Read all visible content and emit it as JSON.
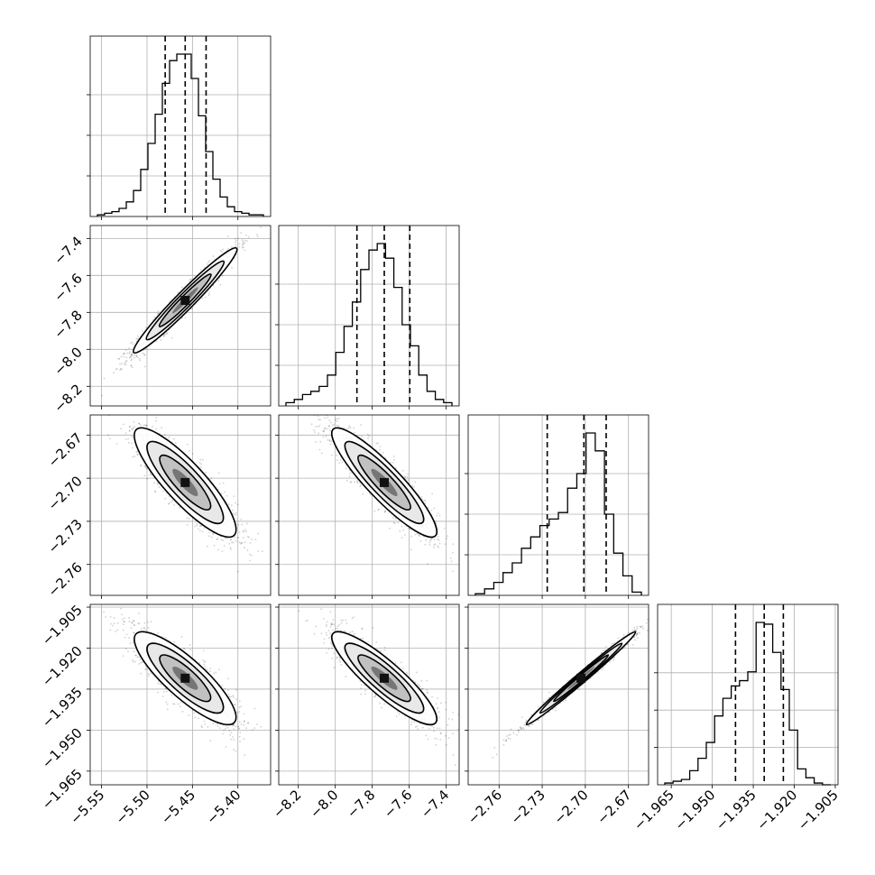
{
  "chart_data": {
    "type": "corner",
    "parameters": [
      {
        "ticks": [
          -5.55,
          -5.5,
          -5.45,
          -5.4
        ],
        "tick_labels": [
          "−5.55",
          "−5.50",
          "−5.45",
          "−5.40"
        ],
        "range": [
          -5.5625,
          -5.364
        ],
        "quantiles": [
          -5.48,
          -5.458,
          -5.435
        ],
        "hist": [
          1,
          2,
          3,
          5,
          9,
          16,
          29,
          45,
          63,
          82,
          96,
          100,
          100,
          85,
          62,
          40,
          23,
          12,
          6,
          3,
          2,
          1,
          1
        ]
      },
      {
        "ticks": [
          -8.2,
          -8.0,
          -7.8,
          -7.6,
          -7.4
        ],
        "tick_labels": [
          "−8.2",
          "−8.0",
          "−7.8",
          "−7.6",
          "−7.4"
        ],
        "range": [
          -8.306,
          -7.33
        ],
        "quantiles": [
          -7.883,
          -7.735,
          -7.597
        ],
        "hist": [
          2,
          4,
          7,
          9,
          12,
          19,
          33,
          49,
          64,
          84,
          96,
          100,
          91,
          73,
          50,
          37,
          19,
          9,
          4,
          2
        ]
      },
      {
        "ticks": [
          -2.76,
          -2.73,
          -2.7,
          -2.67
        ],
        "tick_labels": [
          "−2.76",
          "−2.73",
          "−2.70",
          "−2.67"
        ],
        "range": [
          -2.7815,
          -2.656
        ],
        "quantiles": [
          -2.7265,
          -2.701,
          -2.6855
        ],
        "hist": [
          1,
          4,
          8,
          14,
          20,
          29,
          36,
          43,
          47,
          51,
          66,
          75,
          100,
          89,
          50,
          26,
          12,
          2
        ]
      },
      {
        "ticks": [
          -1.965,
          -1.95,
          -1.935,
          -1.92,
          -1.905
        ],
        "tick_labels": [
          "−1.965",
          "−1.950",
          "−1.935",
          "−1.920",
          "−1.905"
        ],
        "range": [
          -1.97,
          -1.904
        ],
        "quantiles": [
          -1.9415,
          -1.931,
          -1.924
        ],
        "hist": [
          1,
          2,
          3,
          8,
          15,
          24,
          39,
          49,
          56,
          59,
          64,
          92,
          91,
          75,
          54,
          31,
          9,
          4,
          1,
          0
        ]
      }
    ],
    "pairs": [
      {
        "row": 1,
        "col": 0,
        "cx": -5.458,
        "cy": -7.735,
        "sx": 0.0285,
        "sy": 0.142,
        "rho": 0.97
      },
      {
        "row": 2,
        "col": 0,
        "cx": -5.458,
        "cy": -2.703,
        "sx": 0.028,
        "sy": 0.019,
        "rho": -0.86
      },
      {
        "row": 2,
        "col": 1,
        "cx": -7.735,
        "cy": -2.703,
        "sx": 0.142,
        "sy": 0.019,
        "rho": -0.9
      },
      {
        "row": 3,
        "col": 0,
        "cx": -5.458,
        "cy": -1.931,
        "sx": 0.028,
        "sy": 0.0085,
        "rho": -0.84
      },
      {
        "row": 3,
        "col": 1,
        "cx": -7.735,
        "cy": -1.931,
        "sx": 0.142,
        "sy": 0.0085,
        "rho": -0.88
      },
      {
        "row": 3,
        "col": 2,
        "cx": -2.703,
        "cy": -1.931,
        "sx": 0.019,
        "sy": 0.0085,
        "rho": 0.99
      }
    ],
    "contour_levels_sigma": [
      0.5,
      1.0,
      1.5,
      2.0
    ],
    "grid": true,
    "title": "",
    "xlabel": "",
    "ylabel": ""
  }
}
